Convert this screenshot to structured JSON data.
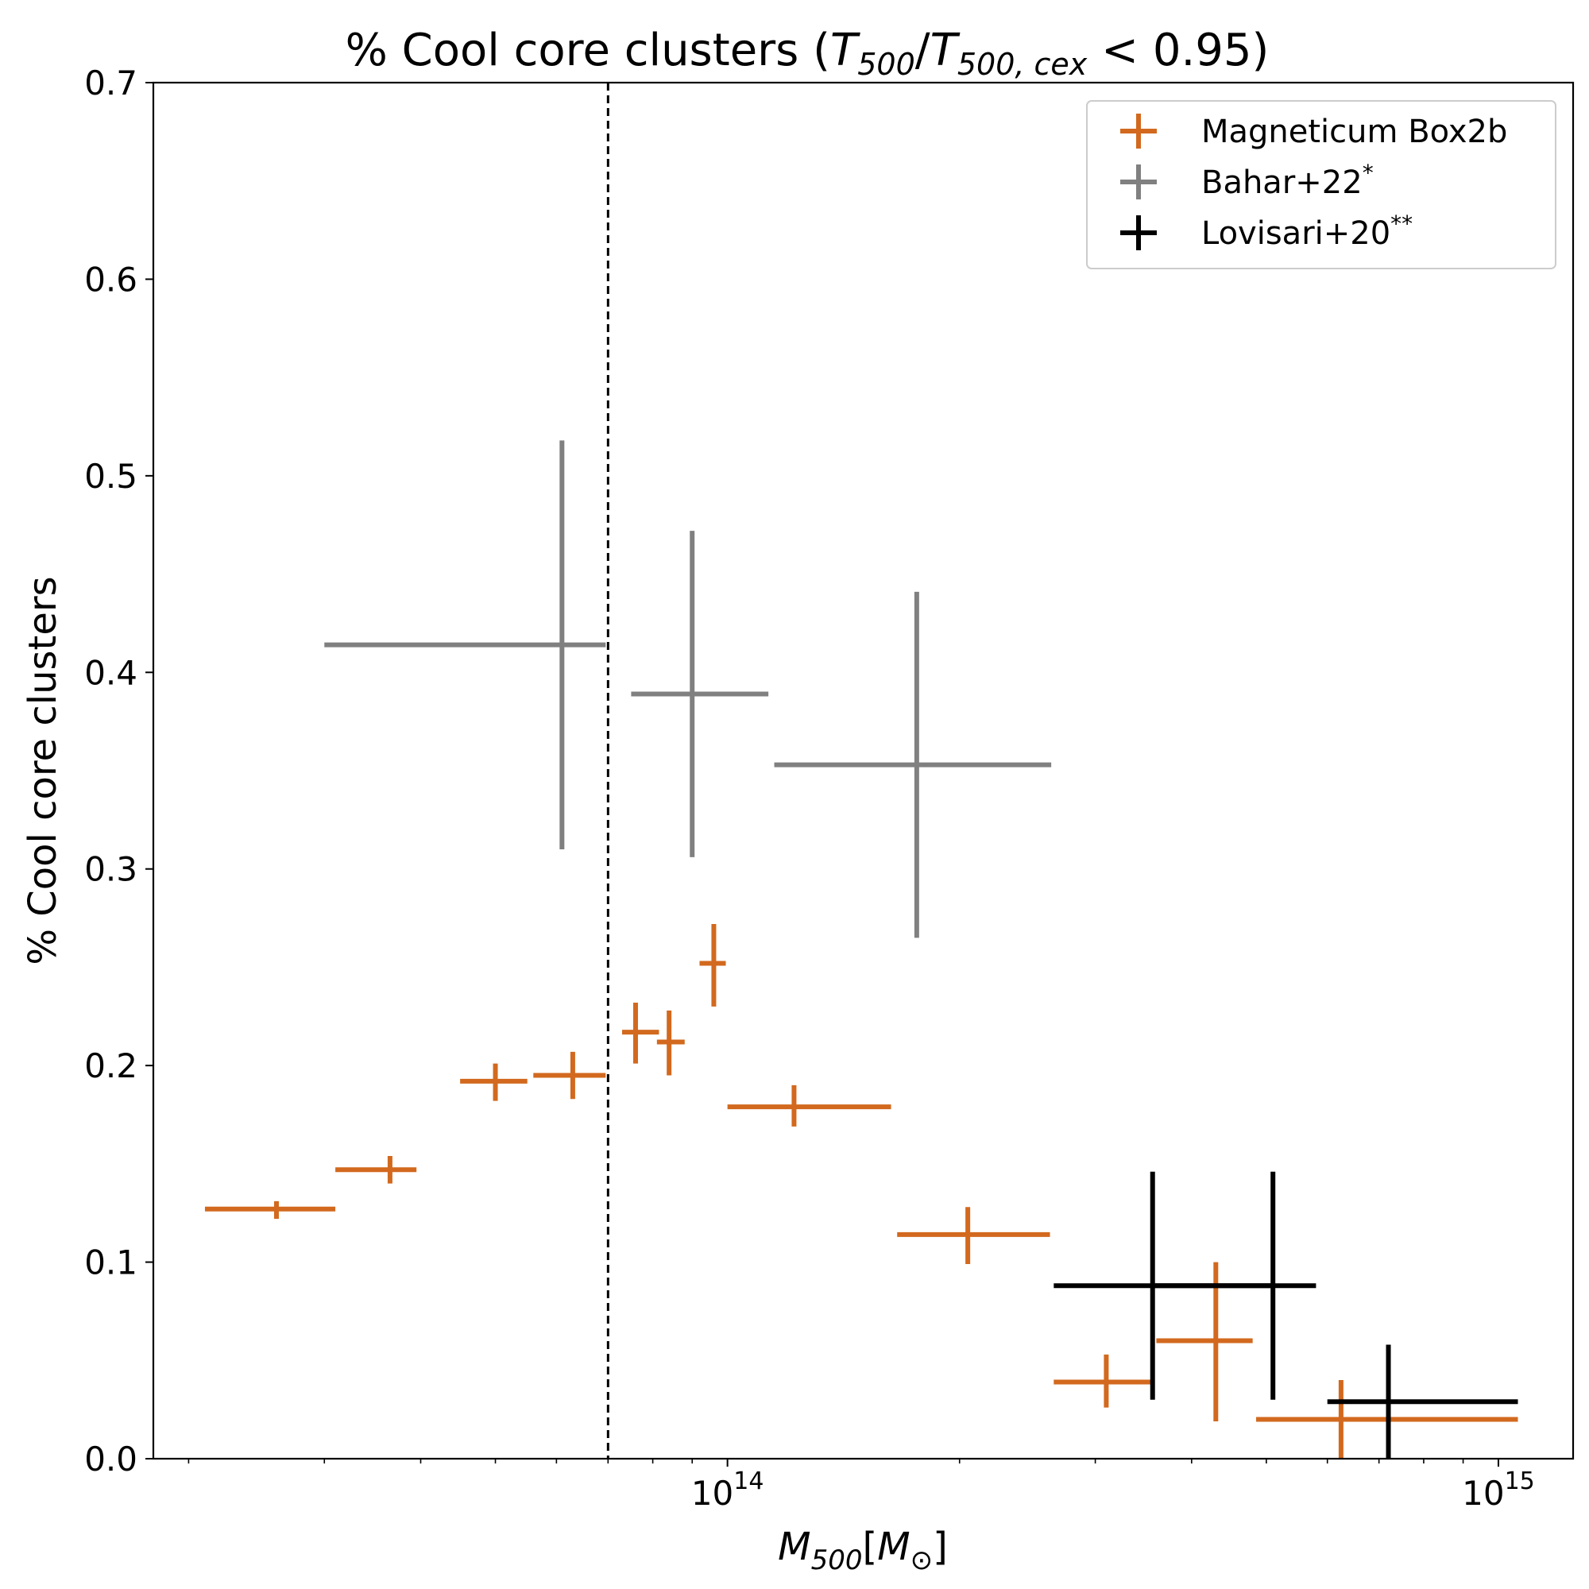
{
  "chart_data": {
    "type": "scatter",
    "title_parts": {
      "prefix": "% Cool core clusters (",
      "t1": "T",
      "t1_sub": "500",
      "slash": "/",
      "t2": "T",
      "t2_sub": "500, cex",
      "rel": " < 0.95)"
    },
    "xlabel_parts": {
      "m": "M",
      "m_sub": "500",
      "bracket_open": "[",
      "msun": "M",
      "msun_sub": "⊙",
      "bracket_close": "]"
    },
    "ylabel": "% Cool core clusters",
    "x_scale": "log",
    "xlim": [
      18000000000000,
      1250000000000000
    ],
    "ylim": [
      0,
      0.7
    ],
    "y_ticks": [
      "0.0",
      "0.1",
      "0.2",
      "0.3",
      "0.4",
      "0.5",
      "0.6",
      "0.7"
    ],
    "x_tick_labels": [
      {
        "base": "10",
        "exp": "14",
        "value": 100000000000000
      },
      {
        "base": "10",
        "exp": "15",
        "value": 1000000000000000
      }
    ],
    "vline_x": 70000000000000,
    "legend": {
      "position": "top-right"
    },
    "series": [
      {
        "name": "Magneticum Box2b",
        "color": "#d2691e",
        "points": [
          {
            "x": 26000000000000,
            "y": 0.127,
            "xlo": 21000000000000,
            "xhi": 31000000000000,
            "ylo": 0.122,
            "yhi": 0.131
          },
          {
            "x": 36500000000000,
            "y": 0.147,
            "xlo": 31000000000000,
            "xhi": 39500000000000,
            "ylo": 0.14,
            "yhi": 0.154
          },
          {
            "x": 50000000000000,
            "y": 0.192,
            "xlo": 45000000000000,
            "xhi": 55000000000000,
            "ylo": 0.182,
            "yhi": 0.201
          },
          {
            "x": 63000000000000,
            "y": 0.195,
            "xlo": 56000000000000,
            "xhi": 69500000000000,
            "ylo": 0.183,
            "yhi": 0.207
          },
          {
            "x": 76000000000000,
            "y": 0.217,
            "xlo": 73000000000000,
            "xhi": 81500000000000,
            "ylo": 0.201,
            "yhi": 0.232
          },
          {
            "x": 84000000000000,
            "y": 0.212,
            "xlo": 81000000000000,
            "xhi": 88000000000000,
            "ylo": 0.195,
            "yhi": 0.228
          },
          {
            "x": 96000000000000,
            "y": 0.252,
            "xlo": 92000000000000,
            "xhi": 99500000000000,
            "ylo": 0.23,
            "yhi": 0.272
          },
          {
            "x": 122000000000000,
            "y": 0.179,
            "xlo": 100000000000000,
            "xhi": 163000000000000,
            "ylo": 0.169,
            "yhi": 0.19
          },
          {
            "x": 205000000000000,
            "y": 0.114,
            "xlo": 166000000000000,
            "xhi": 262000000000000,
            "ylo": 0.099,
            "yhi": 0.128
          },
          {
            "x": 310000000000000,
            "y": 0.039,
            "xlo": 265000000000000,
            "xhi": 355000000000000,
            "ylo": 0.026,
            "yhi": 0.053
          },
          {
            "x": 430000000000000,
            "y": 0.06,
            "xlo": 360000000000000,
            "xhi": 480000000000000,
            "ylo": 0.019,
            "yhi": 0.1
          },
          {
            "x": 625000000000000,
            "y": 0.02,
            "xlo": 485000000000000,
            "xhi": 1060000000000000,
            "ylo": 0.0,
            "yhi": 0.04
          }
        ]
      },
      {
        "name": "Bahar+22",
        "name_sup": "*",
        "color": "#808080",
        "points": [
          {
            "x": 61000000000000,
            "y": 0.414,
            "xlo": 30000000000000,
            "xhi": 69500000000000,
            "ylo": 0.31,
            "yhi": 0.518
          },
          {
            "x": 90000000000000,
            "y": 0.389,
            "xlo": 75000000000000,
            "xhi": 113000000000000,
            "ylo": 0.306,
            "yhi": 0.472
          },
          {
            "x": 176000000000000,
            "y": 0.353,
            "xlo": 115000000000000,
            "xhi": 263000000000000,
            "ylo": 0.265,
            "yhi": 0.441
          }
        ]
      },
      {
        "name": "Lovisari+20",
        "name_sup": "**",
        "color": "#000000",
        "points": [
          {
            "x": 356000000000000,
            "y": 0.088,
            "xlo": 265000000000000,
            "xhi": 510000000000000,
            "ylo": 0.03,
            "yhi": 0.146
          },
          {
            "x": 510000000000000,
            "y": 0.088,
            "xlo": 356000000000000,
            "xhi": 580000000000000,
            "ylo": 0.03,
            "yhi": 0.146
          },
          {
            "x": 720000000000000,
            "y": 0.029,
            "xlo": 600000000000000,
            "xhi": 1060000000000000,
            "ylo": 0.0,
            "yhi": 0.058
          }
        ]
      }
    ]
  }
}
